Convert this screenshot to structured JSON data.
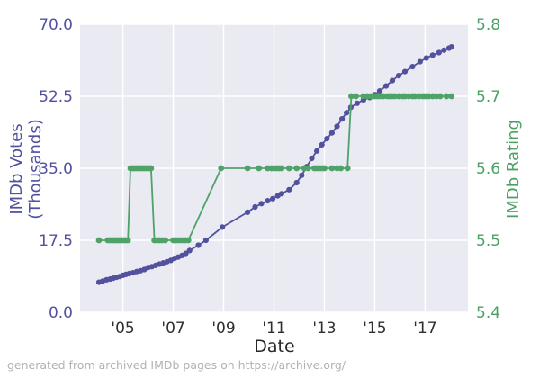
{
  "footer": "generated from archived IMDb pages on https://archive.org/",
  "colors": {
    "votes": "#52519e",
    "rating": "#4fa268",
    "plot_background": "#eaeaf2",
    "gridline": "#ffffff",
    "x_tick_text": "#2e2e2e",
    "left_tick_text": "#5251a0",
    "right_tick_text": "#4ba164",
    "footer_text": "#b2b2b6"
  },
  "chart_data": {
    "type": "line",
    "title": "",
    "xlabel": "Date",
    "grid": true,
    "legend": "none",
    "x_range": [
      2003.3,
      2018.7
    ],
    "x_ticks": [
      {
        "year": 2005,
        "label": "'05"
      },
      {
        "year": 2007,
        "label": "'07"
      },
      {
        "year": 2009,
        "label": "'09"
      },
      {
        "year": 2011,
        "label": "'11"
      },
      {
        "year": 2013,
        "label": "'13"
      },
      {
        "year": 2015,
        "label": "'15"
      },
      {
        "year": 2017,
        "label": "'17"
      }
    ],
    "y_left": {
      "label": "IMDb Votes (Thousands)",
      "range": [
        0,
        70
      ],
      "ticks": [
        {
          "value": 70.0,
          "label": "70.0"
        },
        {
          "value": 52.5,
          "label": "52.5"
        },
        {
          "value": 35.0,
          "label": "35.0"
        },
        {
          "value": 17.5,
          "label": "17.5"
        },
        {
          "value": 0.0,
          "label": "0.0"
        }
      ]
    },
    "y_right": {
      "label": "IMDb Rating",
      "range": [
        5.4,
        5.8
      ],
      "ticks": [
        {
          "value": 5.8,
          "label": "5.8"
        },
        {
          "value": 5.7,
          "label": "5.7"
        },
        {
          "value": 5.6,
          "label": "5.6"
        },
        {
          "value": 5.5,
          "label": "5.5"
        },
        {
          "value": 5.4,
          "label": "5.4"
        }
      ]
    },
    "series": [
      {
        "name": "imdb-votes-thousands",
        "axis": "left",
        "color": "#52519e",
        "marker_radius": 3.1,
        "points": [
          [
            2004.05,
            7.3
          ],
          [
            2004.2,
            7.6
          ],
          [
            2004.35,
            7.9
          ],
          [
            2004.5,
            8.1
          ],
          [
            2004.62,
            8.3
          ],
          [
            2004.75,
            8.5
          ],
          [
            2004.88,
            8.7
          ],
          [
            2005.0,
            9.0
          ],
          [
            2005.12,
            9.2
          ],
          [
            2005.25,
            9.4
          ],
          [
            2005.4,
            9.6
          ],
          [
            2005.55,
            9.9
          ],
          [
            2005.7,
            10.1
          ],
          [
            2005.85,
            10.4
          ],
          [
            2006.0,
            10.9
          ],
          [
            2006.15,
            11.1
          ],
          [
            2006.3,
            11.4
          ],
          [
            2006.45,
            11.7
          ],
          [
            2006.6,
            12.0
          ],
          [
            2006.75,
            12.3
          ],
          [
            2006.9,
            12.6
          ],
          [
            2007.05,
            13.1
          ],
          [
            2007.2,
            13.4
          ],
          [
            2007.35,
            13.8
          ],
          [
            2007.5,
            14.3
          ],
          [
            2007.65,
            15.0
          ],
          [
            2008.0,
            16.3
          ],
          [
            2008.3,
            17.5
          ],
          [
            2008.95,
            20.7
          ],
          [
            2009.95,
            24.3
          ],
          [
            2010.25,
            25.6
          ],
          [
            2010.5,
            26.4
          ],
          [
            2010.75,
            27.1
          ],
          [
            2010.95,
            27.6
          ],
          [
            2011.15,
            28.3
          ],
          [
            2011.3,
            28.8
          ],
          [
            2011.6,
            29.8
          ],
          [
            2011.9,
            31.5
          ],
          [
            2012.1,
            33.3
          ],
          [
            2012.3,
            35.4
          ],
          [
            2012.5,
            37.4
          ],
          [
            2012.7,
            39.2
          ],
          [
            2012.9,
            40.7
          ],
          [
            2013.1,
            42.2
          ],
          [
            2013.3,
            43.6
          ],
          [
            2013.5,
            45.2
          ],
          [
            2013.7,
            47.0
          ],
          [
            2013.88,
            48.5
          ],
          [
            2014.05,
            49.8
          ],
          [
            2014.3,
            50.8
          ],
          [
            2014.55,
            51.6
          ],
          [
            2014.8,
            52.2
          ],
          [
            2015.0,
            52.9
          ],
          [
            2015.2,
            53.8
          ],
          [
            2015.45,
            55.0
          ],
          [
            2015.7,
            56.3
          ],
          [
            2015.95,
            57.5
          ],
          [
            2016.2,
            58.5
          ],
          [
            2016.5,
            59.7
          ],
          [
            2016.8,
            60.9
          ],
          [
            2017.05,
            61.8
          ],
          [
            2017.3,
            62.5
          ],
          [
            2017.55,
            63.1
          ],
          [
            2017.75,
            63.7
          ],
          [
            2017.95,
            64.2
          ],
          [
            2018.05,
            64.5
          ]
        ]
      },
      {
        "name": "imdb-rating",
        "axis": "right",
        "color": "#4fa268",
        "marker_radius": 3.4,
        "points": [
          [
            2004.05,
            5.5
          ],
          [
            2004.4,
            5.5
          ],
          [
            2004.5,
            5.5
          ],
          [
            2004.6,
            5.5
          ],
          [
            2004.7,
            5.5
          ],
          [
            2004.78,
            5.5
          ],
          [
            2004.86,
            5.5
          ],
          [
            2004.94,
            5.5
          ],
          [
            2005.02,
            5.5
          ],
          [
            2005.1,
            5.5
          ],
          [
            2005.2,
            5.5
          ],
          [
            2005.3,
            5.6
          ],
          [
            2005.38,
            5.6
          ],
          [
            2005.46,
            5.6
          ],
          [
            2005.54,
            5.6
          ],
          [
            2005.62,
            5.6
          ],
          [
            2005.7,
            5.6
          ],
          [
            2005.78,
            5.6
          ],
          [
            2005.86,
            5.6
          ],
          [
            2005.95,
            5.6
          ],
          [
            2006.05,
            5.6
          ],
          [
            2006.12,
            5.6
          ],
          [
            2006.25,
            5.5
          ],
          [
            2006.35,
            5.5
          ],
          [
            2006.45,
            5.5
          ],
          [
            2006.55,
            5.5
          ],
          [
            2006.68,
            5.5
          ],
          [
            2007.0,
            5.5
          ],
          [
            2007.12,
            5.5
          ],
          [
            2007.24,
            5.5
          ],
          [
            2007.36,
            5.5
          ],
          [
            2007.48,
            5.5
          ],
          [
            2007.6,
            5.5
          ],
          [
            2008.9,
            5.6
          ],
          [
            2009.95,
            5.6
          ],
          [
            2010.4,
            5.6
          ],
          [
            2010.75,
            5.6
          ],
          [
            2010.9,
            5.6
          ],
          [
            2011.0,
            5.6
          ],
          [
            2011.1,
            5.6
          ],
          [
            2011.2,
            5.6
          ],
          [
            2011.3,
            5.6
          ],
          [
            2011.6,
            5.6
          ],
          [
            2011.9,
            5.6
          ],
          [
            2012.2,
            5.6
          ],
          [
            2012.35,
            5.6
          ],
          [
            2012.6,
            5.6
          ],
          [
            2012.7,
            5.6
          ],
          [
            2012.8,
            5.6
          ],
          [
            2012.9,
            5.6
          ],
          [
            2013.0,
            5.6
          ],
          [
            2013.3,
            5.6
          ],
          [
            2013.5,
            5.6
          ],
          [
            2013.65,
            5.6
          ],
          [
            2013.92,
            5.6
          ],
          [
            2014.07,
            5.7
          ],
          [
            2014.25,
            5.7
          ],
          [
            2014.55,
            5.7
          ],
          [
            2014.7,
            5.7
          ],
          [
            2014.85,
            5.7
          ],
          [
            2015.0,
            5.7
          ],
          [
            2015.1,
            5.7
          ],
          [
            2015.2,
            5.7
          ],
          [
            2015.35,
            5.7
          ],
          [
            2015.5,
            5.7
          ],
          [
            2015.6,
            5.7
          ],
          [
            2015.7,
            5.7
          ],
          [
            2015.8,
            5.7
          ],
          [
            2015.95,
            5.7
          ],
          [
            2016.1,
            5.7
          ],
          [
            2016.2,
            5.7
          ],
          [
            2016.35,
            5.7
          ],
          [
            2016.5,
            5.7
          ],
          [
            2016.6,
            5.7
          ],
          [
            2016.75,
            5.7
          ],
          [
            2016.9,
            5.7
          ],
          [
            2017.0,
            5.7
          ],
          [
            2017.15,
            5.7
          ],
          [
            2017.3,
            5.7
          ],
          [
            2017.45,
            5.7
          ],
          [
            2017.6,
            5.7
          ],
          [
            2017.85,
            5.7
          ],
          [
            2018.05,
            5.7
          ]
        ]
      }
    ]
  }
}
